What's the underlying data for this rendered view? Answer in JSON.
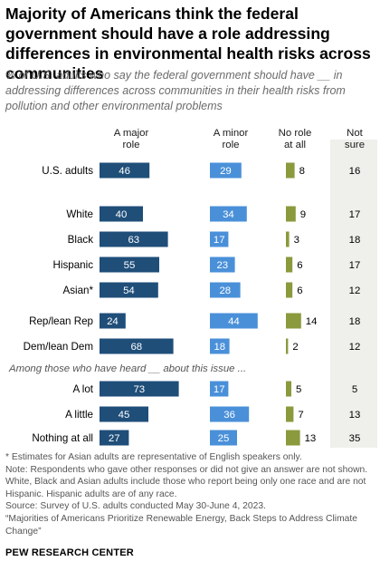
{
  "header": {
    "title": "Majority of Americans think the federal government should have a role addressing differences in environmental health risks across communities",
    "subtitle": "% of U.S. adults who say the federal government should have __ in addressing differences across communities in their health risks from pollution and other environmental problems"
  },
  "colors": {
    "major": "#1f4e79",
    "minor": "#4a90d9",
    "none": "#8a9a3c",
    "notsure_bg": "#efefec"
  },
  "chart_data": {
    "type": "bar",
    "orientation": "horizontal",
    "stacked": false,
    "column_headers": {
      "major": "A major role",
      "minor": "A minor role",
      "none": "No role at all",
      "notsure": "Not sure"
    },
    "categories": [
      "U.S. adults",
      "White",
      "Black",
      "Hispanic",
      "Asian*",
      "Rep/lean Rep",
      "Dem/lean Dem",
      "A lot",
      "A little",
      "Nothing at all"
    ],
    "series": [
      {
        "name": "A major role",
        "values": [
          46,
          40,
          63,
          55,
          54,
          24,
          68,
          73,
          45,
          27
        ]
      },
      {
        "name": "A minor role",
        "values": [
          29,
          34,
          17,
          23,
          28,
          44,
          18,
          17,
          36,
          25
        ]
      },
      {
        "name": "No role at all",
        "values": [
          8,
          9,
          3,
          6,
          6,
          14,
          2,
          5,
          7,
          13
        ]
      },
      {
        "name": "Not sure",
        "values": [
          16,
          17,
          18,
          17,
          12,
          18,
          12,
          5,
          13,
          35
        ]
      }
    ],
    "group_note": "Among those who have heard __ about this issue ...",
    "group_note_before_index": 7
  },
  "notes": {
    "asterisk": "* Estimates for Asian adults are representative of English speakers only.",
    "note": "Note: Respondents who gave other responses or did not give an answer are not shown. White, Black and Asian adults include those who report being only one race and are not Hispanic. Hispanic adults are of any race.",
    "source": "Source: Survey of U.S. adults conducted May 30-June 4, 2023.",
    "report": "“Majorities of Americans Prioritize Renewable Energy, Back Steps to Address Climate Change”"
  },
  "brand": "PEW RESEARCH CENTER"
}
